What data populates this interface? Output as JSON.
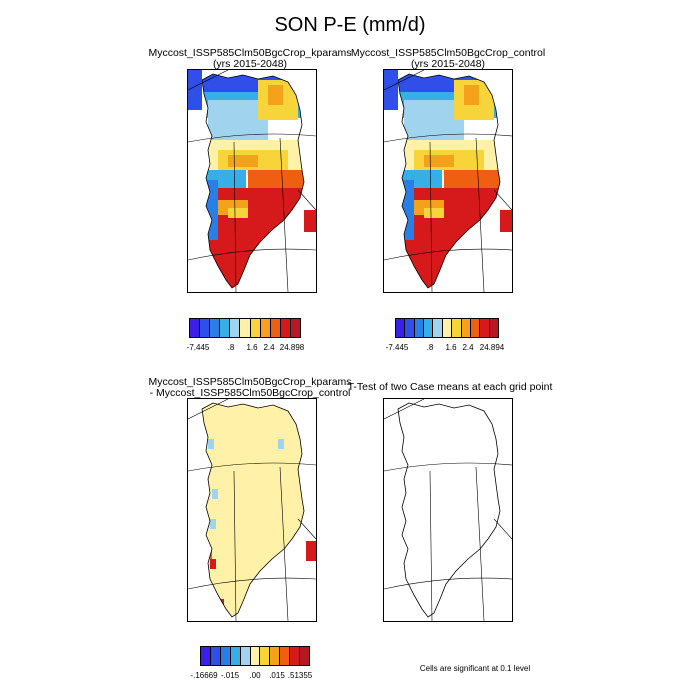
{
  "title": "SON P-E (mm/d)",
  "panels": {
    "p1": {
      "title1": "Myccost_ISSP585Clm50BgcCrop_kparams",
      "title2": "(yrs 2015-2048)"
    },
    "p2": {
      "title1": "Myccost_ISSP585Clm50BgcCrop_control",
      "title2": "(yrs 2015-2048)"
    },
    "p3": {
      "title1": "Myccost_ISSP585Clm50BgcCrop_kparams",
      "title2": "- Myccost_ISSP585Clm50BgcCrop_control"
    },
    "p4": {
      "title1": "T-Test of two Case means at each grid point"
    }
  },
  "colorbars": {
    "cb1": {
      "labels": [
        "-7.445",
        ".8",
        "1.6",
        "2.4",
        "24.898"
      ]
    },
    "cb2": {
      "labels": [
        "-7.445",
        ".8",
        "1.6",
        "2.4",
        "24.894"
      ]
    },
    "cb3": {
      "labels": [
        "-.16669",
        "-.015",
        ".00",
        ".015",
        ".51355"
      ]
    }
  },
  "palette": [
    "#3b1fe6",
    "#2f4fe8",
    "#2a7fe6",
    "#37aee6",
    "#9fd3ee",
    "#fff2a8",
    "#f7d43a",
    "#f4a21c",
    "#ee5f12",
    "#d6191b",
    "#b51a24"
  ],
  "note": "Cells are significant at 0.1 level"
}
